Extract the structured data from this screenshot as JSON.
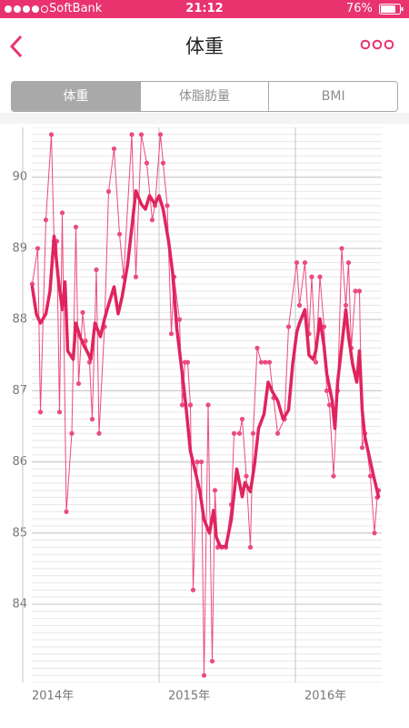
{
  "status_bar": {
    "carrier": "SoftBank",
    "time": "21:12",
    "battery": "76%"
  },
  "nav": {
    "title": "体重"
  },
  "tabs": [
    "体重",
    "体脂肪量",
    "BMI"
  ],
  "chart_data": {
    "type": "line",
    "grid": true,
    "xlim": [
      2014,
      2016.6
    ],
    "xticks": [
      {
        "value": 2014,
        "label": "2014年"
      },
      {
        "value": 2015,
        "label": "2015年"
      },
      {
        "value": 2016,
        "label": "2016年"
      }
    ],
    "ylim": [
      82.9,
      90.7
    ],
    "yticks": [
      84,
      85,
      86,
      87,
      88,
      89,
      90
    ],
    "series": [
      {
        "color": "#ec4a80",
        "markers": true,
        "line_width": 1,
        "x": [
          2014.07,
          2014.11,
          2014.13,
          2014.17,
          2014.21,
          2014.23,
          2014.25,
          2014.27,
          2014.29,
          2014.32,
          2014.36,
          2014.39,
          2014.41,
          2014.44,
          2014.46,
          2014.49,
          2014.51,
          2014.54,
          2014.56,
          2014.6,
          2014.63,
          2014.67,
          2014.71,
          2014.74,
          2014.8,
          2014.83,
          2014.87,
          2014.91,
          2014.95,
          2014.97,
          2015.01,
          2015.03,
          2015.06,
          2015.09,
          2015.11,
          2015.15,
          2015.17,
          2015.19,
          2015.21,
          2015.23,
          2015.25,
          2015.28,
          2015.31,
          2015.33,
          2015.36,
          2015.39,
          2015.41,
          2015.43,
          2015.46,
          2015.49,
          2015.53,
          2015.55,
          2015.59,
          2015.61,
          2015.64,
          2015.67,
          2015.69,
          2015.72,
          2015.75,
          2015.78,
          2015.81,
          2015.84,
          2015.87,
          2015.92,
          2015.95,
          2016.01,
          2016.03,
          2016.07,
          2016.1,
          2016.12,
          2016.15,
          2016.18,
          2016.21,
          2016.23,
          2016.25,
          2016.28,
          2016.31,
          2016.34,
          2016.37,
          2016.39,
          2016.41,
          2016.44,
          2016.47,
          2016.49,
          2016.51,
          2016.55,
          2016.58,
          2016.6,
          2016.61
        ],
        "values": [
          88.5,
          89.0,
          86.7,
          89.4,
          90.6,
          89.1,
          89.1,
          86.7,
          89.5,
          85.3,
          86.4,
          89.3,
          87.1,
          88.1,
          87.7,
          87.4,
          86.6,
          88.7,
          86.4,
          87.9,
          89.8,
          90.4,
          89.2,
          88.6,
          90.6,
          88.6,
          90.6,
          90.2,
          89.4,
          89.6,
          90.6,
          90.2,
          89.6,
          87.8,
          88.6,
          88.0,
          86.8,
          87.4,
          87.4,
          86.8,
          84.2,
          86.0,
          86.0,
          83.0,
          86.8,
          83.2,
          85.6,
          84.8,
          84.8,
          84.8,
          85.4,
          86.4,
          86.4,
          86.6,
          85.8,
          84.8,
          86.4,
          87.6,
          87.4,
          87.4,
          87.4,
          86.9,
          86.4,
          86.6,
          87.9,
          88.8,
          88.2,
          88.8,
          87.8,
          88.6,
          87.4,
          88.6,
          87.9,
          87.0,
          86.8,
          85.8,
          87.0,
          89.0,
          88.2,
          88.8,
          87.6,
          88.4,
          88.4,
          86.2,
          86.4,
          85.8,
          85.0,
          85.5,
          85.6
        ]
      },
      {
        "color": "#e0245e",
        "markers": false,
        "line_width": 3.5,
        "x": [
          2014.07,
          2014.1,
          2014.13,
          2014.17,
          2014.2,
          2014.23,
          2014.26,
          2014.29,
          2014.31,
          2014.33,
          2014.37,
          2014.39,
          2014.42,
          2014.45,
          2014.47,
          2014.5,
          2014.53,
          2014.57,
          2014.6,
          2014.63,
          2014.67,
          2014.7,
          2014.73,
          2014.77,
          2014.8,
          2014.83,
          2014.87,
          2014.9,
          2014.93,
          2014.97,
          2015.0,
          2015.03,
          2015.07,
          2015.1,
          2015.13,
          2015.17,
          2015.2,
          2015.23,
          2015.27,
          2015.3,
          2015.33,
          2015.37,
          2015.4,
          2015.42,
          2015.45,
          2015.49,
          2015.53,
          2015.57,
          2015.61,
          2015.63,
          2015.67,
          2015.7,
          2015.73,
          2015.77,
          2015.8,
          2015.83,
          2015.87,
          2015.91,
          2015.95,
          2015.98,
          2016.01,
          2016.03,
          2016.07,
          2016.1,
          2016.13,
          2016.15,
          2016.18,
          2016.21,
          2016.23,
          2016.27,
          2016.29,
          2016.31,
          2016.34,
          2016.37,
          2016.39,
          2016.42,
          2016.45,
          2016.47,
          2016.49,
          2016.51,
          2016.54,
          2016.57,
          2016.61
        ],
        "values": [
          88.46,
          88.08,
          87.95,
          88.08,
          88.4,
          89.17,
          88.59,
          88.14,
          88.53,
          87.56,
          87.44,
          87.95,
          87.76,
          87.63,
          87.56,
          87.44,
          87.95,
          87.76,
          88.01,
          88.21,
          88.46,
          88.08,
          88.33,
          88.78,
          89.29,
          89.81,
          89.62,
          89.55,
          89.74,
          89.62,
          89.74,
          89.55,
          89.1,
          88.65,
          87.88,
          87.24,
          86.73,
          86.15,
          85.83,
          85.58,
          85.19,
          85.0,
          85.32,
          84.94,
          84.81,
          84.81,
          85.19,
          85.9,
          85.51,
          85.71,
          85.58,
          85.96,
          86.47,
          86.67,
          87.12,
          86.99,
          86.86,
          86.6,
          86.73,
          87.37,
          87.82,
          87.95,
          88.14,
          87.5,
          87.44,
          87.56,
          88.01,
          87.63,
          87.24,
          86.86,
          86.47,
          87.12,
          87.63,
          88.14,
          87.76,
          87.37,
          87.12,
          87.56,
          86.73,
          86.35,
          86.09,
          85.83,
          85.51
        ]
      }
    ]
  }
}
